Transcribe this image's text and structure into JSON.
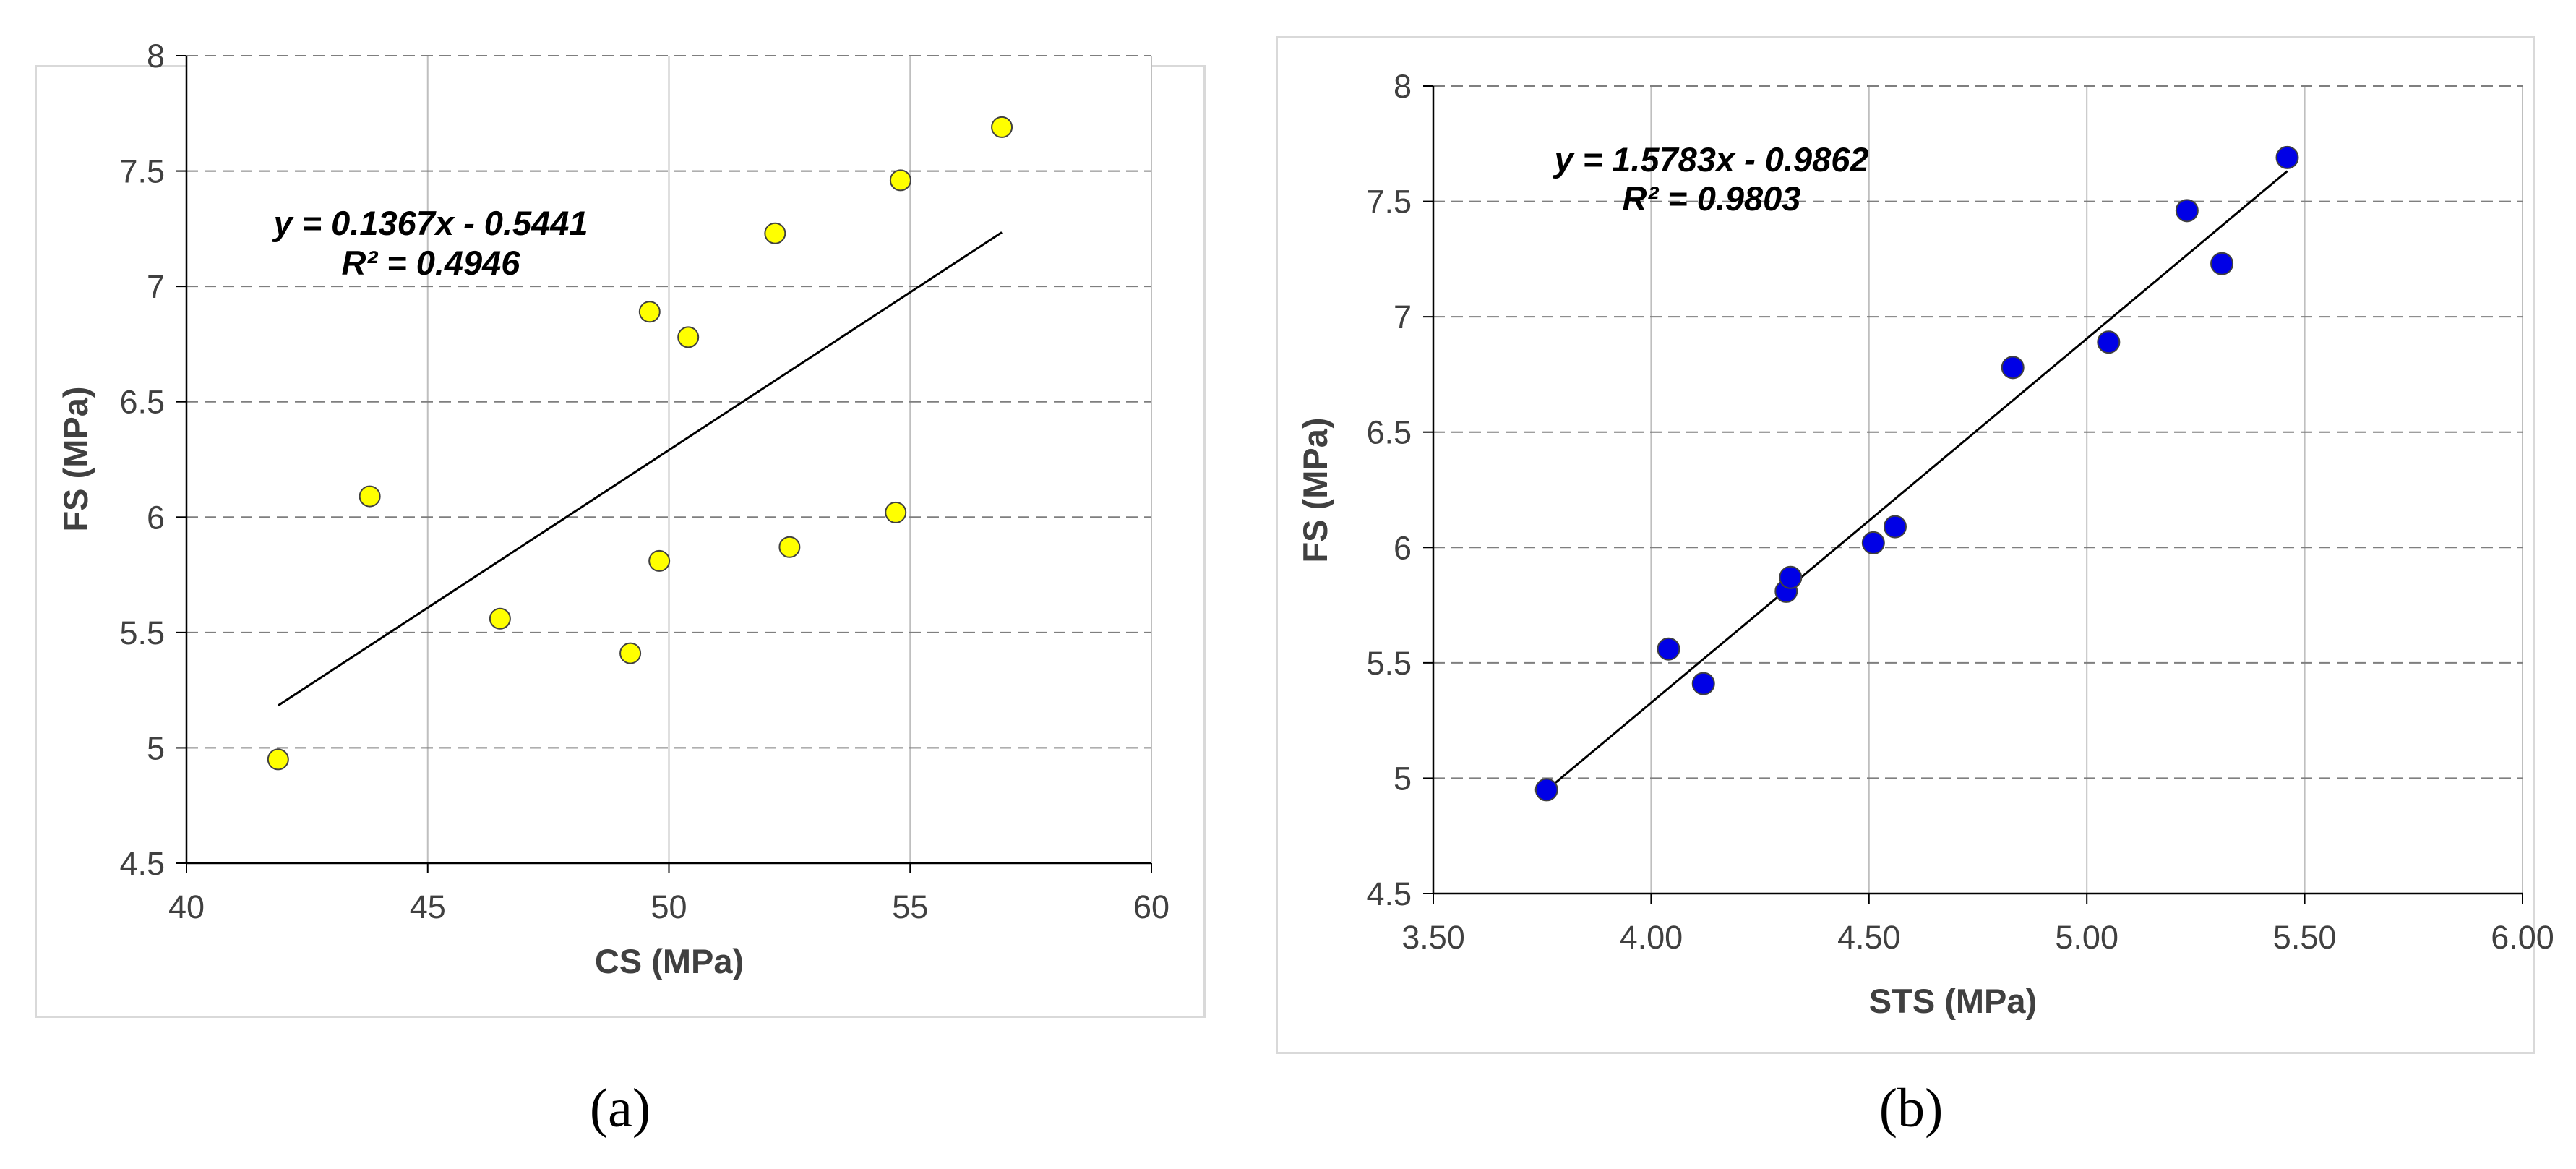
{
  "chart_data": [
    {
      "type": "scatter",
      "panel": "a",
      "caption": "(a)",
      "xlabel": "CS (MPa)",
      "ylabel": "FS (MPa)",
      "xlim": [
        40,
        60
      ],
      "ylim": [
        4.5,
        8
      ],
      "x_ticks": [
        40,
        45,
        50,
        55,
        60
      ],
      "x_tick_labels": [
        "40",
        "45",
        "50",
        "55",
        "60"
      ],
      "y_ticks": [
        4.5,
        5,
        5.5,
        6,
        6.5,
        7,
        7.5,
        8
      ],
      "y_tick_labels": [
        "4.5",
        "5",
        "5.5",
        "6",
        "6.5",
        "7",
        "7.5",
        "8"
      ],
      "gridlines": "vertical solid, horizontal dashed",
      "marker_color": "#ffff00",
      "points": [
        {
          "x": 41.9,
          "y": 4.95
        },
        {
          "x": 43.8,
          "y": 6.09
        },
        {
          "x": 46.5,
          "y": 5.56
        },
        {
          "x": 49.2,
          "y": 5.41
        },
        {
          "x": 49.6,
          "y": 6.89
        },
        {
          "x": 49.8,
          "y": 5.81
        },
        {
          "x": 50.4,
          "y": 6.78
        },
        {
          "x": 52.2,
          "y": 7.23
        },
        {
          "x": 52.5,
          "y": 5.87
        },
        {
          "x": 54.7,
          "y": 6.02
        },
        {
          "x": 54.8,
          "y": 7.46
        },
        {
          "x": 56.9,
          "y": 7.69
        }
      ],
      "trendline": {
        "slope": 0.1367,
        "intercept": -0.5441,
        "x_start": 41.9,
        "x_end": 56.9
      },
      "equation": "y = 0.1367x - 0.5441",
      "r_squared": "R² = 0.4946"
    },
    {
      "type": "scatter",
      "panel": "b",
      "caption": "(b)",
      "xlabel": "STS (MPa)",
      "ylabel": "FS (MPa)",
      "xlim": [
        3.5,
        6.0
      ],
      "ylim": [
        4.5,
        8
      ],
      "x_ticks": [
        3.5,
        4.0,
        4.5,
        5.0,
        5.5,
        6.0
      ],
      "x_tick_labels": [
        "3.50",
        "4.00",
        "4.50",
        "5.00",
        "5.50",
        "6.00"
      ],
      "y_ticks": [
        4.5,
        5,
        5.5,
        6,
        6.5,
        7,
        7.5,
        8
      ],
      "y_tick_labels": [
        "4.5",
        "5",
        "5.5",
        "6",
        "6.5",
        "7",
        "7.5",
        "8"
      ],
      "gridlines": "vertical solid, horizontal dashed",
      "marker_color": "#0000e6",
      "points": [
        {
          "x": 3.76,
          "y": 4.95
        },
        {
          "x": 4.04,
          "y": 5.56
        },
        {
          "x": 4.12,
          "y": 5.41
        },
        {
          "x": 4.31,
          "y": 5.81
        },
        {
          "x": 4.32,
          "y": 5.87
        },
        {
          "x": 4.51,
          "y": 6.02
        },
        {
          "x": 4.56,
          "y": 6.09
        },
        {
          "x": 4.83,
          "y": 6.78
        },
        {
          "x": 5.05,
          "y": 6.89
        },
        {
          "x": 5.23,
          "y": 7.46
        },
        {
          "x": 5.31,
          "y": 7.23
        },
        {
          "x": 5.46,
          "y": 7.69
        }
      ],
      "trendline": {
        "slope": 1.5783,
        "intercept": -0.9862,
        "x_start": 3.76,
        "x_end": 5.46
      },
      "equation": "y = 1.5783x - 0.9862",
      "r_squared": "R² = 0.9803"
    }
  ]
}
